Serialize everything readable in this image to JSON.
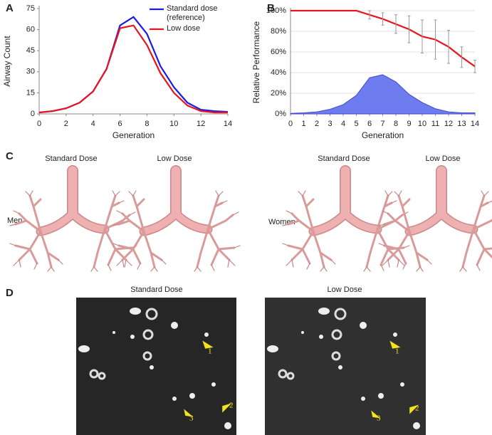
{
  "chart_data": [
    {
      "type": "line",
      "ylabel": "Airway Count",
      "xlabel": "Generation",
      "panel": "A",
      "x": [
        0,
        1,
        2,
        3,
        4,
        5,
        6,
        7,
        8,
        9,
        10,
        11,
        12,
        13,
        14
      ],
      "xlim": [
        0,
        14
      ],
      "xticks": [
        0,
        2,
        4,
        6,
        8,
        10,
        12,
        14
      ],
      "ylim": [
        0,
        75
      ],
      "yticks": [
        0,
        15,
        30,
        45,
        60,
        75
      ],
      "grid": false,
      "legend": "upper right",
      "series": [
        {
          "name": "Standard dose (reference)",
          "color": "#1a1ae6",
          "values": [
            1,
            2,
            4,
            8,
            16,
            32,
            63,
            69,
            57,
            34,
            19,
            8,
            3,
            2,
            1.5
          ]
        },
        {
          "name": "Low dose",
          "color": "#e8141e",
          "values": [
            1,
            2,
            4,
            8,
            16,
            32,
            61,
            63,
            49,
            29,
            15,
            6,
            2,
            1,
            1
          ]
        }
      ]
    },
    {
      "type": "line",
      "ylabel": "Relative Performance",
      "xlabel": "Generation",
      "panel": "B",
      "x": [
        0,
        1,
        2,
        3,
        4,
        5,
        6,
        7,
        8,
        9,
        10,
        11,
        12,
        13,
        14
      ],
      "xlim": [
        0,
        14
      ],
      "xticks": [
        0,
        1,
        2,
        3,
        4,
        5,
        6,
        7,
        8,
        9,
        10,
        11,
        12,
        13,
        14
      ],
      "ylim": [
        0,
        100
      ],
      "yticks": [
        {
          "value": 0,
          "label": "0%"
        },
        {
          "value": 20,
          "label": "20%"
        },
        {
          "value": 40,
          "label": "40%"
        },
        {
          "value": 60,
          "label": "60%"
        },
        {
          "value": 80,
          "label": "80%"
        },
        {
          "value": 100,
          "label": "100%"
        }
      ],
      "grid": true,
      "series": [
        {
          "color": "#6f7cf0",
          "fill": true,
          "values": [
            0.5,
            1,
            2,
            4.5,
            9,
            18,
            35,
            38,
            31,
            19,
            11,
            5,
            2,
            1,
            1
          ]
        },
        {
          "color": "#e8141e",
          "values": [
            100,
            100,
            100,
            100,
            100,
            100,
            96,
            92,
            87,
            82,
            75,
            72,
            65,
            55,
            46
          ],
          "errors": [
            null,
            null,
            null,
            null,
            null,
            null,
            4,
            6,
            9,
            13,
            16,
            19,
            16,
            10,
            6
          ]
        }
      ]
    }
  ],
  "panel_c": {
    "label": "C",
    "titles": [
      "Standard Dose",
      "Low Dose",
      "Standard Dose",
      "Low Dose"
    ],
    "groups": [
      "Men",
      "Women"
    ]
  },
  "panel_d": {
    "label": "D",
    "titles": [
      "Standard Dose",
      "Low  Dose"
    ],
    "arrows": [
      "1",
      "2",
      "3",
      "1",
      "2",
      "3"
    ]
  }
}
